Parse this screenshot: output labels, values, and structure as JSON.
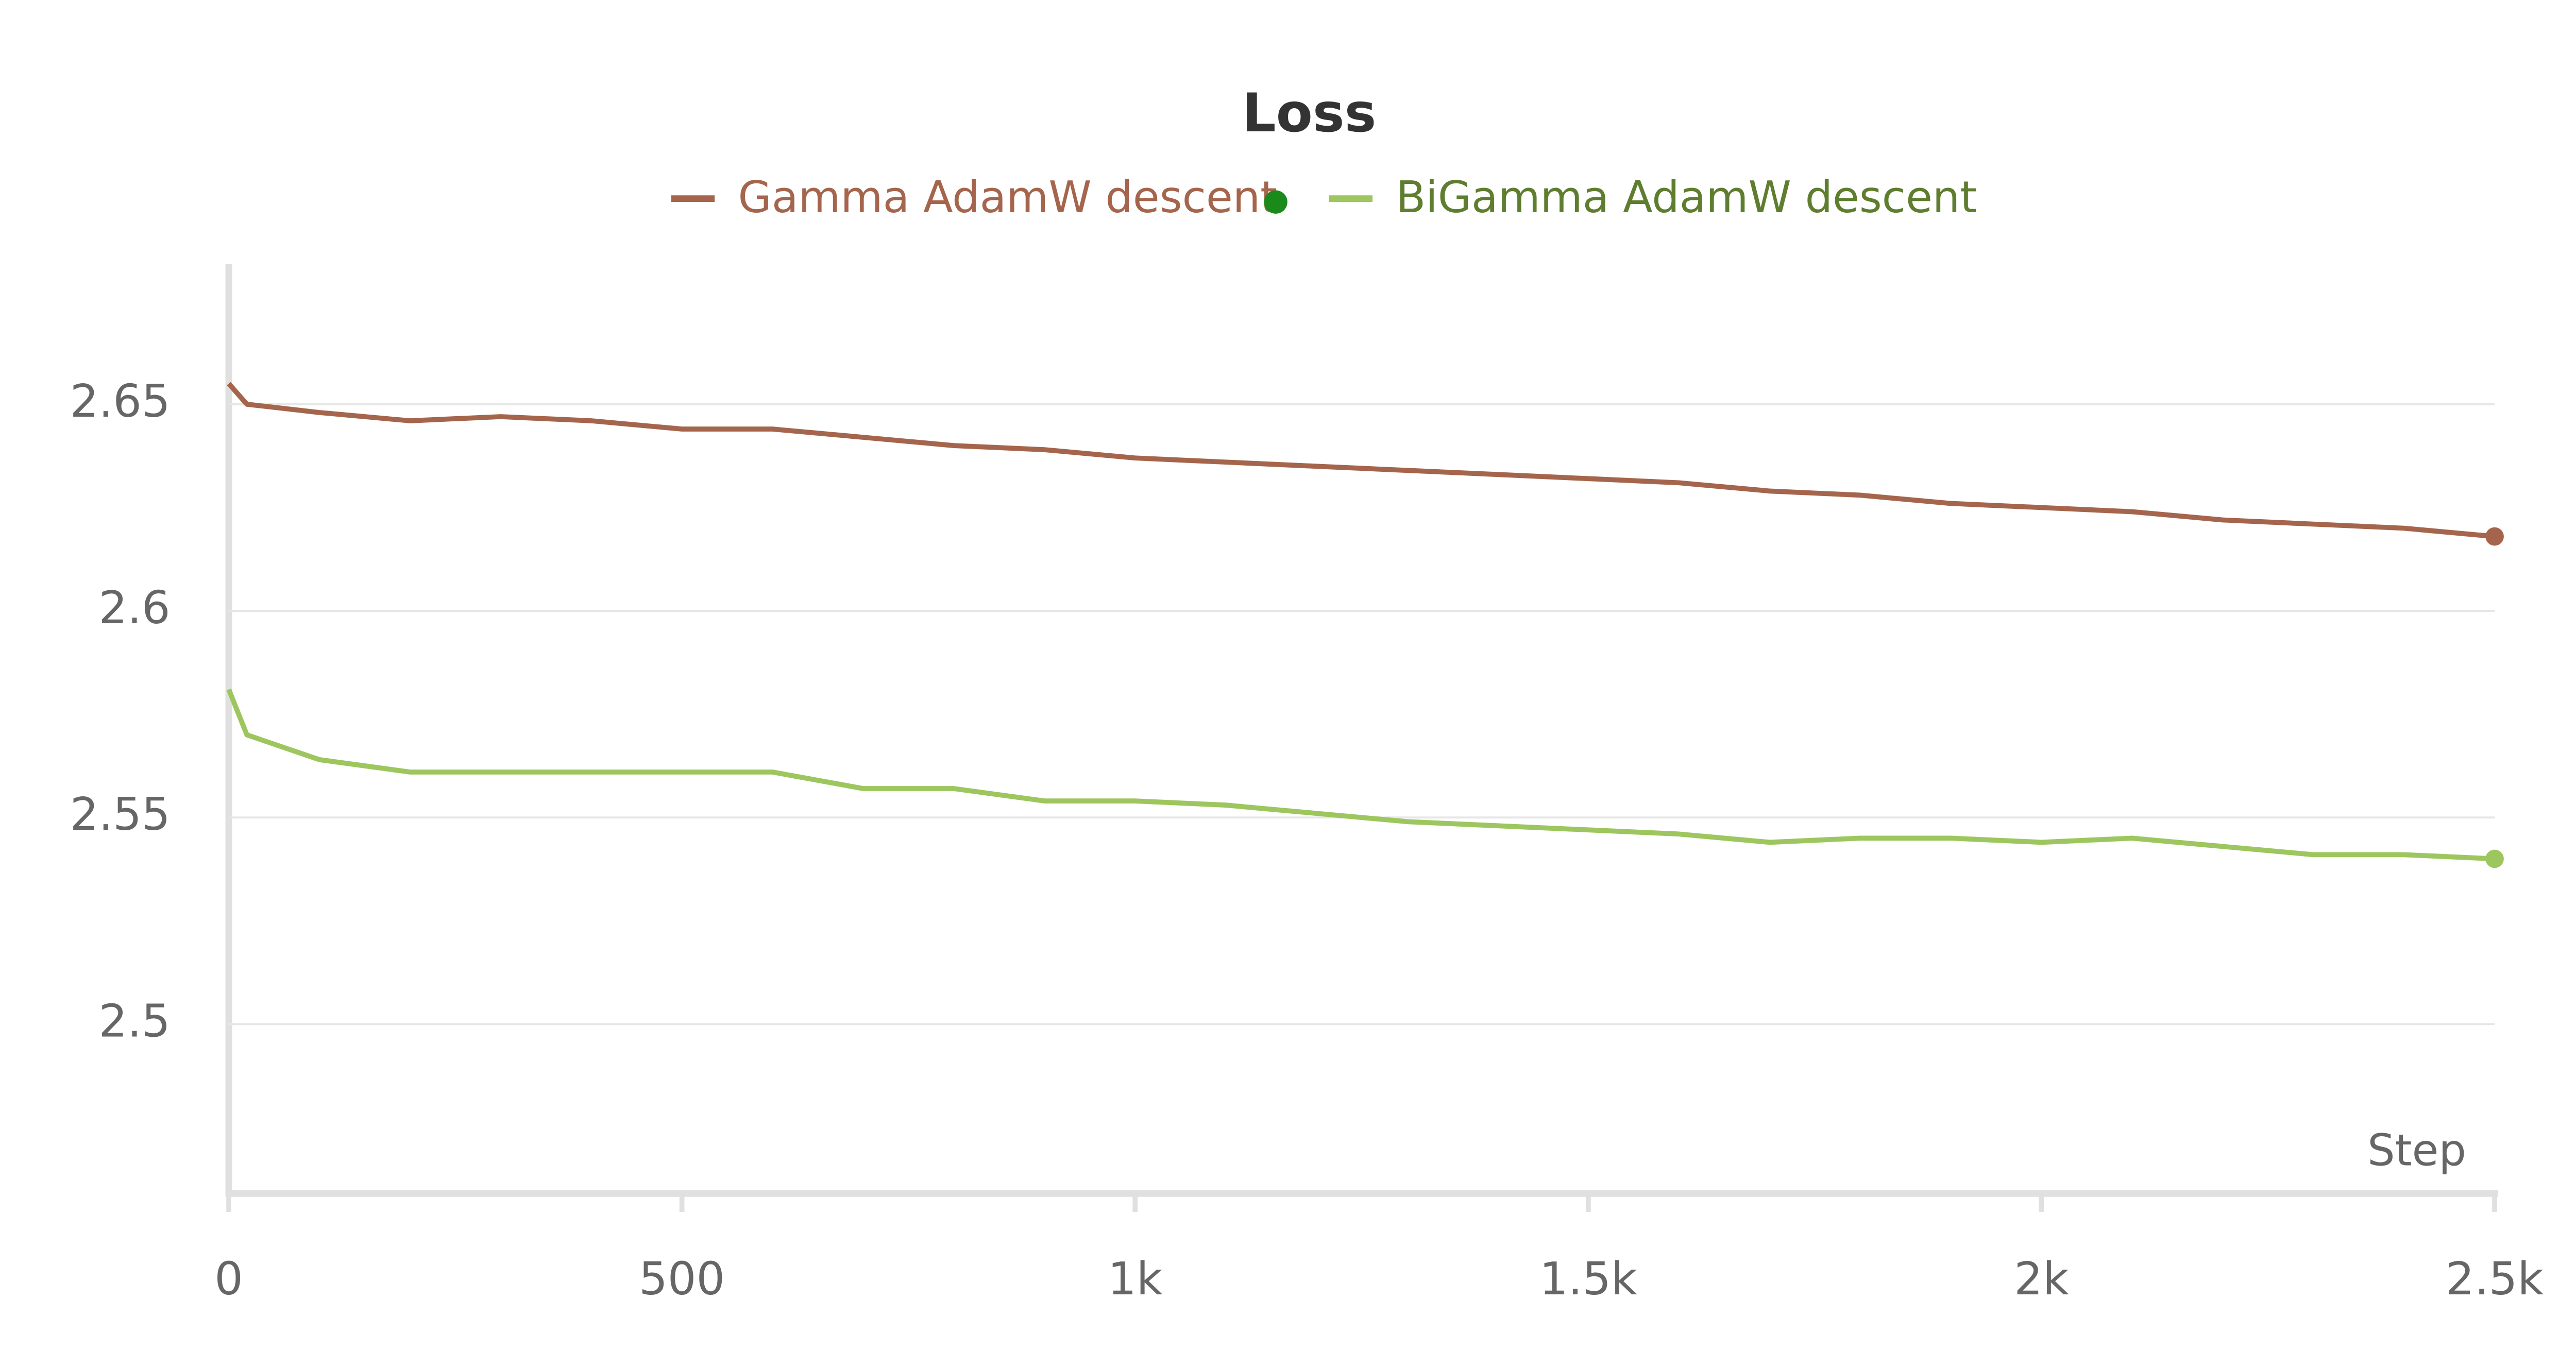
{
  "chart_data": {
    "type": "line",
    "title": "Loss",
    "x_label": "Step",
    "x": [
      0,
      20,
      100,
      200,
      300,
      400,
      500,
      600,
      700,
      800,
      900,
      1000,
      1100,
      1200,
      1300,
      1400,
      1500,
      1600,
      1700,
      1800,
      1900,
      2000,
      2100,
      2200,
      2300,
      2400,
      2500
    ],
    "series": [
      {
        "name": "Gamma AdamW descent",
        "color": "#a5654c",
        "text_color": "#a5654c",
        "values": [
          2.655,
          2.65,
          2.648,
          2.646,
          2.647,
          2.646,
          2.644,
          2.644,
          2.642,
          2.64,
          2.639,
          2.637,
          2.636,
          2.635,
          2.634,
          2.633,
          2.632,
          2.631,
          2.629,
          2.628,
          2.626,
          2.625,
          2.624,
          2.622,
          2.621,
          2.62,
          2.618
        ]
      },
      {
        "name": "BiGamma AdamW descent",
        "color": "#9dc65e",
        "text_color": "#5e7d2e",
        "values": [
          2.581,
          2.57,
          2.564,
          2.561,
          2.561,
          2.561,
          2.561,
          2.561,
          2.557,
          2.557,
          2.554,
          2.554,
          2.553,
          2.551,
          2.549,
          2.548,
          2.547,
          2.546,
          2.544,
          2.545,
          2.545,
          2.544,
          2.545,
          2.543,
          2.541,
          2.541,
          2.54
        ]
      }
    ],
    "xlim": [
      0,
      2500
    ],
    "xticks": [
      0,
      500,
      {
        "value": 1000,
        "label": "1k"
      },
      {
        "value": 1500,
        "label": "1.5k"
      },
      {
        "value": 2000,
        "label": "2k"
      },
      {
        "value": 2500,
        "label": "2.5k"
      }
    ],
    "ylim": [
      2.459,
      2.684
    ],
    "yticks": [
      2.5,
      2.55,
      2.6,
      2.65
    ],
    "grid": true
  }
}
